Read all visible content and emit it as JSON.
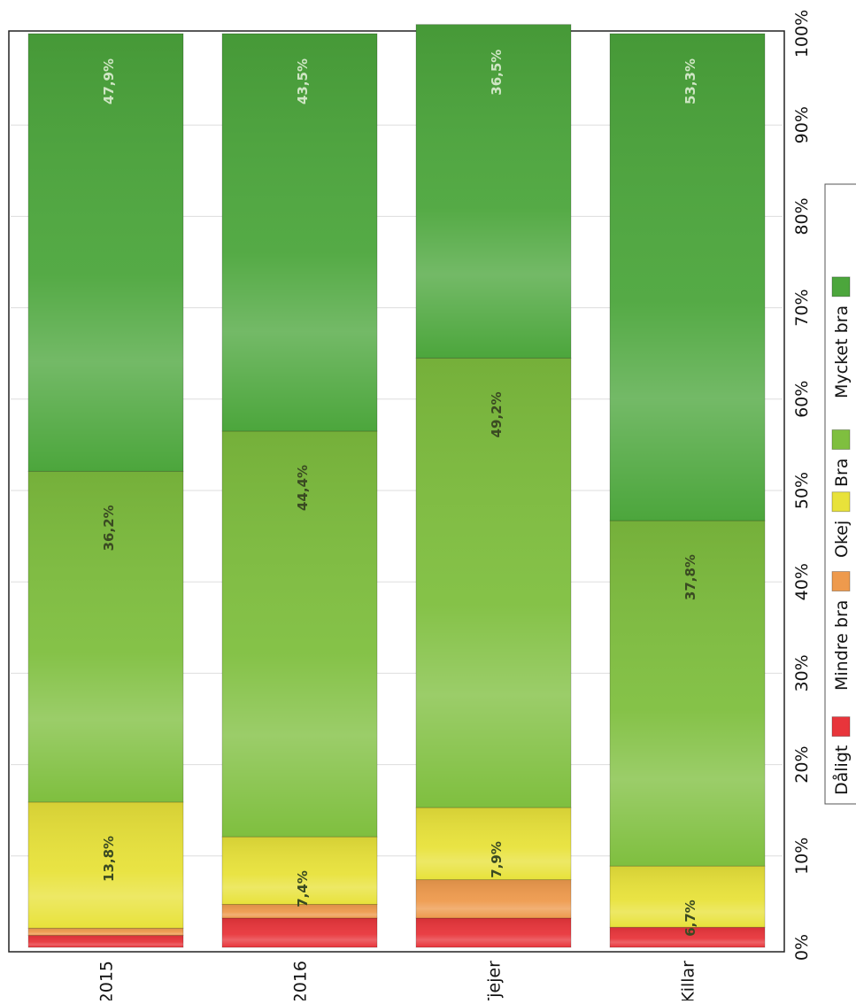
{
  "chart_data": {
    "type": "bar",
    "stacked": true,
    "orientation": "horizontal",
    "categories": [
      "2015",
      "2016",
      "Tjejer",
      "Killar"
    ],
    "series": [
      {
        "name": "Dåligt",
        "values": [
          1.3,
          3.2,
          3.2,
          2.2
        ],
        "labels": [
          "",
          "",
          "",
          ""
        ]
      },
      {
        "name": "Mindre bra",
        "values": [
          0.8,
          1.5,
          4.2,
          0.0
        ],
        "labels": [
          "",
          "",
          "",
          ""
        ]
      },
      {
        "name": "Okej",
        "values": [
          13.8,
          7.4,
          7.9,
          6.7
        ],
        "labels": [
          "13,8%",
          "7,4%",
          "7,9%",
          "6,7%"
        ]
      },
      {
        "name": "Bra",
        "values": [
          36.2,
          44.4,
          49.2,
          37.8
        ],
        "labels": [
          "36,2%",
          "44,4%",
          "49,2%",
          "37,8%"
        ]
      },
      {
        "name": "Mycket bra",
        "values": [
          47.9,
          43.5,
          36.5,
          53.3
        ],
        "labels": [
          "47,9%",
          "43,5%",
          "36,5%",
          "53,3%"
        ]
      }
    ],
    "xlim": [
      0,
      100
    ],
    "ticks": [
      "0%",
      "10%",
      "20%",
      "30%",
      "40%",
      "50%",
      "60%",
      "70%",
      "80%",
      "90%",
      "100%"
    ],
    "grid": true,
    "legend_position": "bottom"
  },
  "colors": {
    "Dåligt": "#e8353b",
    "Mindre bra": "#ee9a4d",
    "Okej": "#e8e23a",
    "Bra": "#7fbf3f",
    "Mycket bra": "#4ca63c",
    "label_dark": "#3a4a22",
    "label_light": "#cfe6c4"
  }
}
